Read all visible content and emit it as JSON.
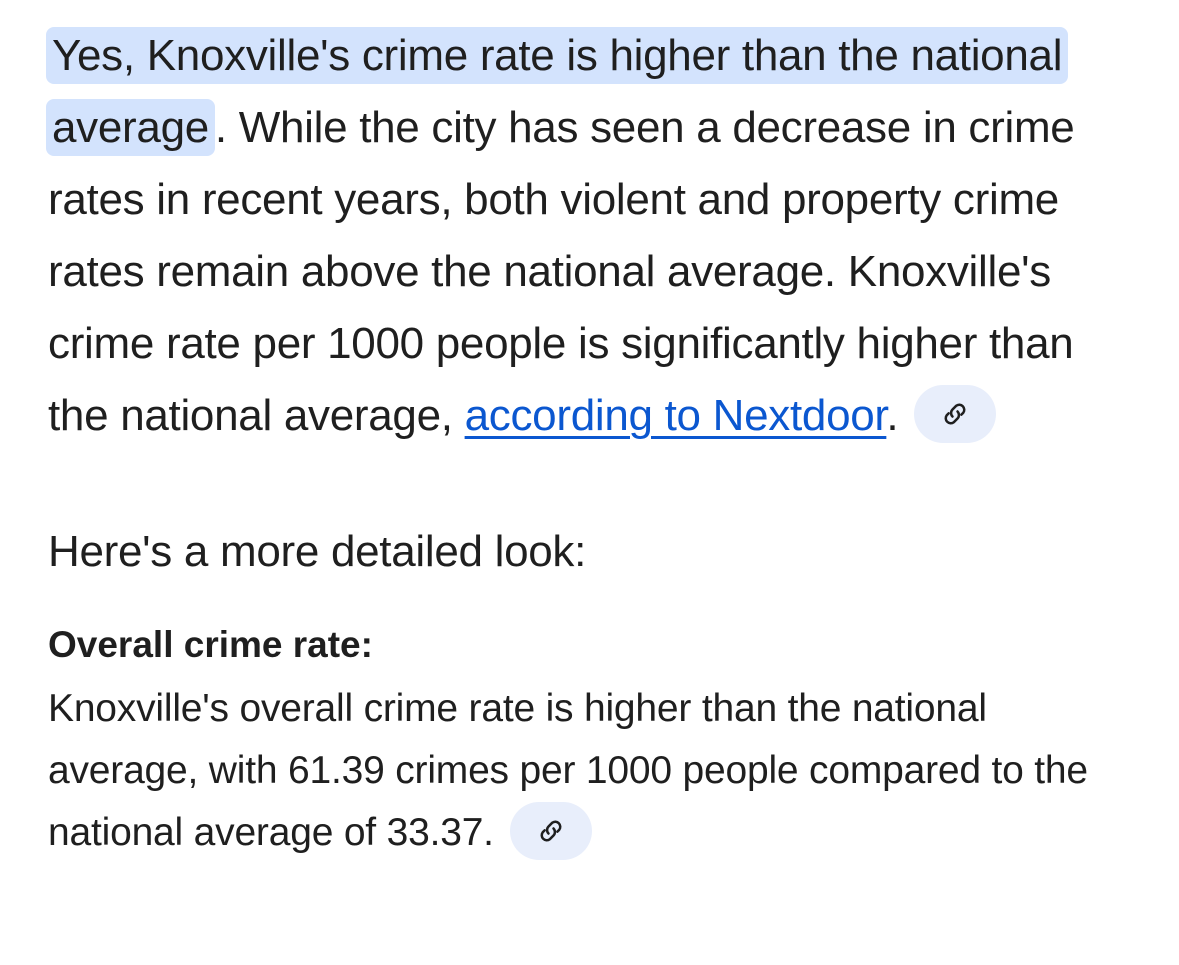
{
  "answer": {
    "highlight": "Yes, Knoxville's crime rate is higher than the national average",
    "text": ". While the city has seen a decrease in crime rates in recent years, both violent and property crime rates remain above the national average. Knoxville's crime rate per 1000 people is significantly higher than the national average, ",
    "link": "according to Nextdoor",
    "end": "."
  },
  "intro": "Here's a more detailed look:",
  "sections": [
    {
      "heading": "Overall crime rate:",
      "text": "Knoxville's overall crime rate is higher than the national average, with 61.39 crimes per 1000 people compared to the national average of 33.37."
    }
  ]
}
